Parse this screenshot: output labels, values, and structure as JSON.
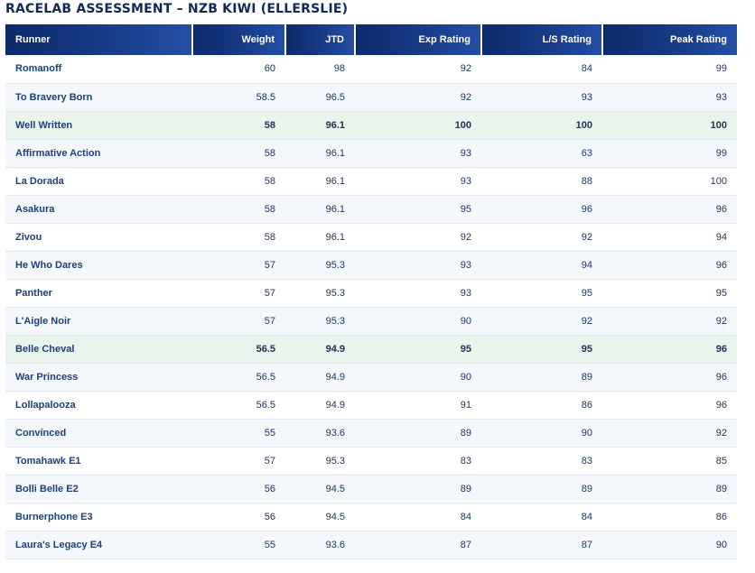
{
  "title": "RACELAB ASSESSMENT – NZB KIWI (ELLERSLIE)",
  "columns": [
    "Runner",
    "Weight",
    "JTD",
    "Exp Rating",
    "L/S Rating",
    "Peak Rating"
  ],
  "rows": [
    {
      "runner": "Romanoff",
      "weight": "60",
      "jtd": "98",
      "exp": "92",
      "ls": "84",
      "peak": "99",
      "highlight": false
    },
    {
      "runner": "To Bravery Born",
      "weight": "58.5",
      "jtd": "96.5",
      "exp": "92",
      "ls": "93",
      "peak": "93",
      "highlight": false
    },
    {
      "runner": "Well Written",
      "weight": "58",
      "jtd": "96.1",
      "exp": "100",
      "ls": "100",
      "peak": "100",
      "highlight": true
    },
    {
      "runner": "Affirmative Action",
      "weight": "58",
      "jtd": "96.1",
      "exp": "93",
      "ls": "63",
      "peak": "99",
      "highlight": false
    },
    {
      "runner": "La Dorada",
      "weight": "58",
      "jtd": "96.1",
      "exp": "93",
      "ls": "88",
      "peak": "100",
      "highlight": false
    },
    {
      "runner": "Asakura",
      "weight": "58",
      "jtd": "96.1",
      "exp": "95",
      "ls": "96",
      "peak": "96",
      "highlight": false
    },
    {
      "runner": "Zivou",
      "weight": "58",
      "jtd": "96.1",
      "exp": "92",
      "ls": "92",
      "peak": "94",
      "highlight": false
    },
    {
      "runner": "He Who Dares",
      "weight": "57",
      "jtd": "95.3",
      "exp": "93",
      "ls": "94",
      "peak": "96",
      "highlight": false
    },
    {
      "runner": "Panther",
      "weight": "57",
      "jtd": "95.3",
      "exp": "93",
      "ls": "95",
      "peak": "95",
      "highlight": false
    },
    {
      "runner": "L'Aigle Noir",
      "weight": "57",
      "jtd": "95.3",
      "exp": "90",
      "ls": "92",
      "peak": "92",
      "highlight": false
    },
    {
      "runner": "Belle Cheval",
      "weight": "56.5",
      "jtd": "94.9",
      "exp": "95",
      "ls": "95",
      "peak": "96",
      "highlight": true
    },
    {
      "runner": "War Princess",
      "weight": "56.5",
      "jtd": "94.9",
      "exp": "90",
      "ls": "89",
      "peak": "96",
      "highlight": false
    },
    {
      "runner": "Lollapalooza",
      "weight": "56.5",
      "jtd": "94.9",
      "exp": "91",
      "ls": "86",
      "peak": "96",
      "highlight": false
    },
    {
      "runner": "Convinced",
      "weight": "55",
      "jtd": "93.6",
      "exp": "89",
      "ls": "90",
      "peak": "92",
      "highlight": false
    },
    {
      "runner": "Tomahawk E1",
      "weight": "57",
      "jtd": "95.3",
      "exp": "83",
      "ls": "83",
      "peak": "85",
      "highlight": false
    },
    {
      "runner": "Bolli Belle E2",
      "weight": "56",
      "jtd": "94.5",
      "exp": "89",
      "ls": "89",
      "peak": "89",
      "highlight": false
    },
    {
      "runner": "Burnerphone E3",
      "weight": "56",
      "jtd": "94.5",
      "exp": "84",
      "ls": "84",
      "peak": "86",
      "highlight": false
    },
    {
      "runner": "Laura's Legacy E4",
      "weight": "55",
      "jtd": "93.6",
      "exp": "87",
      "ls": "87",
      "peak": "90",
      "highlight": false
    }
  ]
}
